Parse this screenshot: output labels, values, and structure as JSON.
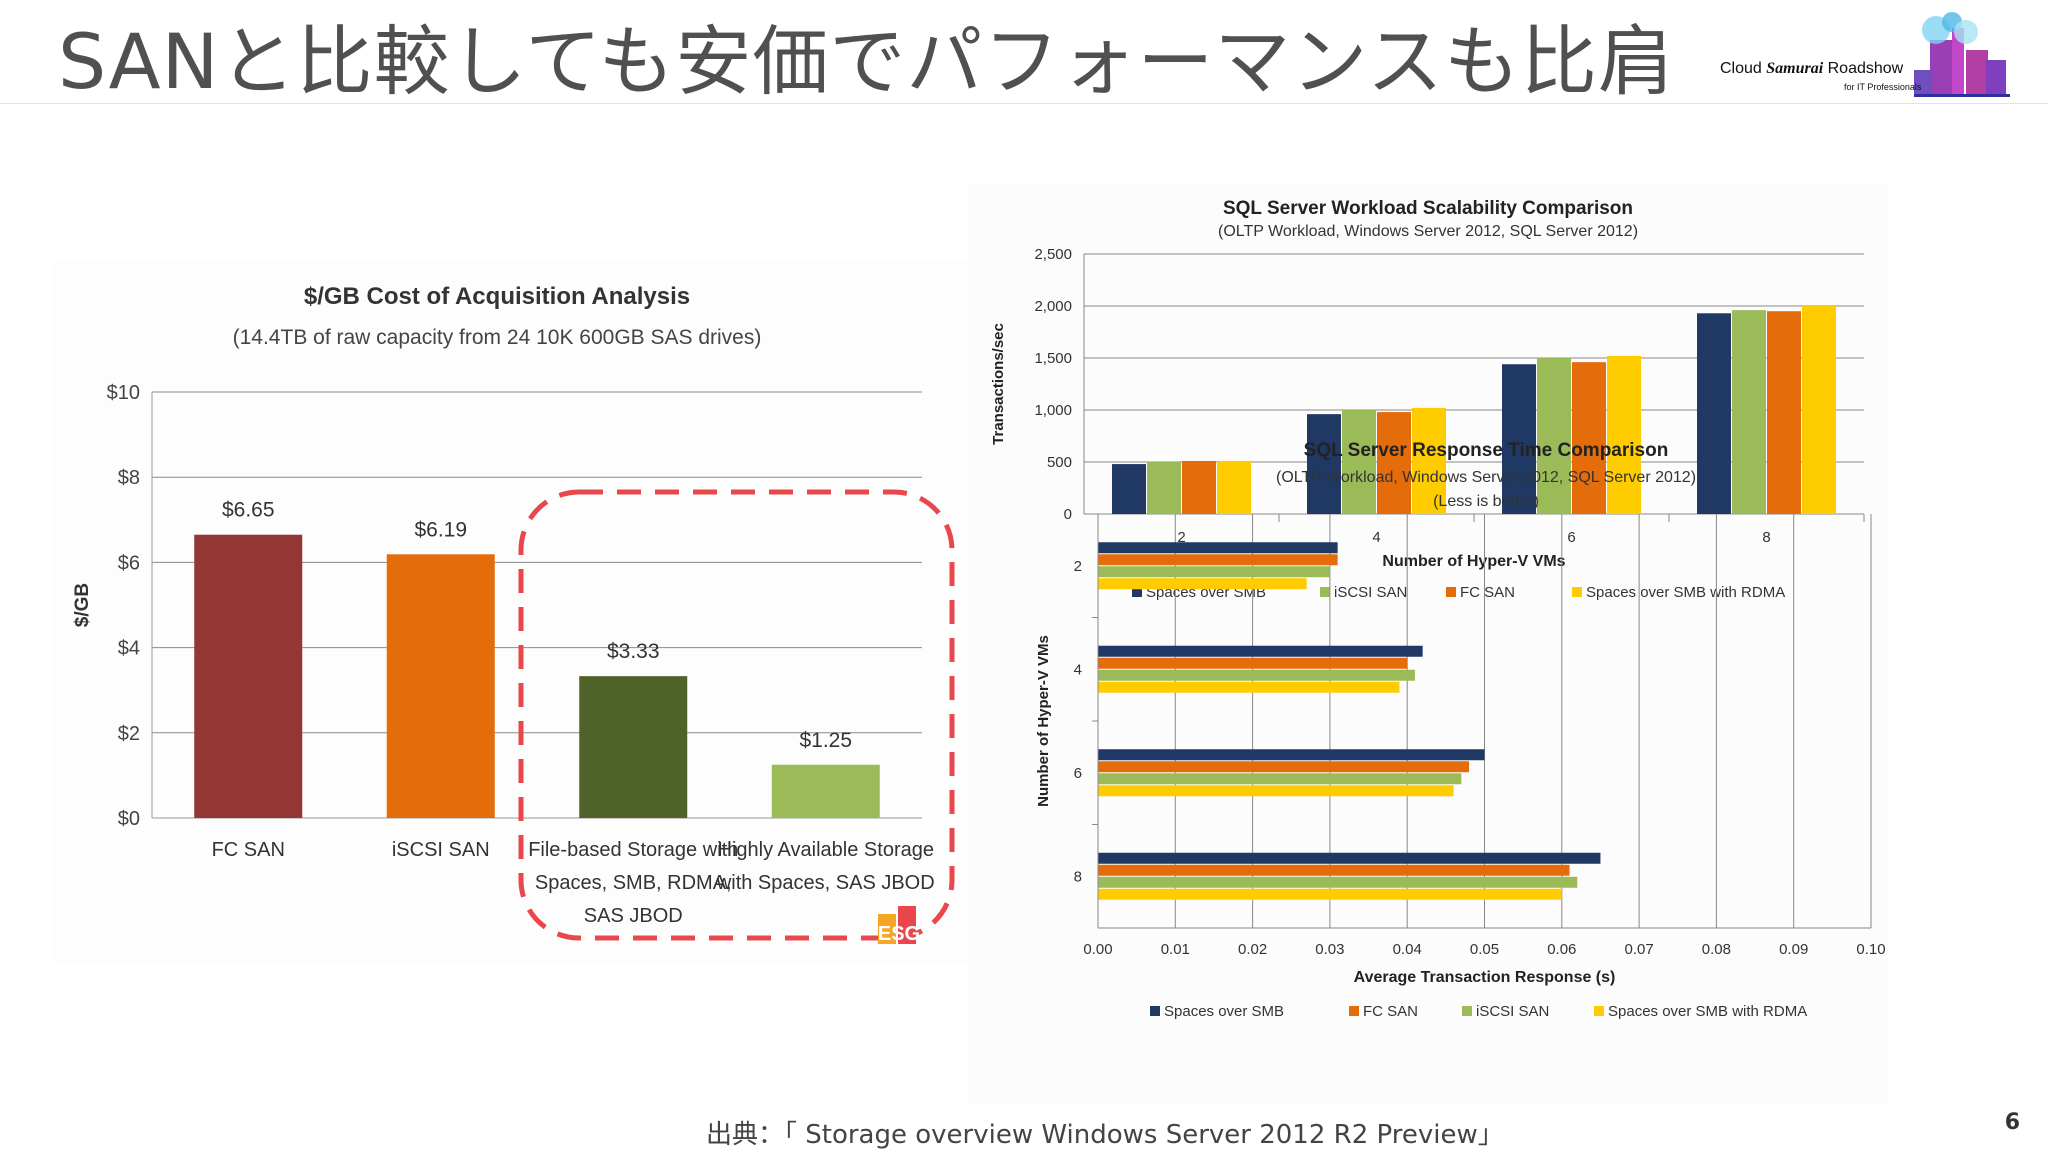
{
  "slide": {
    "title": "SANと比較しても安価でパフォーマンスも比肩",
    "source": "出典：「 Storage overview Windows Server 2012 R2 Preview」",
    "page_number": "6",
    "logo": {
      "text_a": "Cloud ",
      "text_b": "Samurai",
      "text_c": " Roadshow",
      "subtitle": "for IT Professionals"
    }
  },
  "colors": {
    "fc_san": "#943634",
    "iscsi_san_cost": "#e46c0a",
    "file_based": "#4f6228",
    "highly_available": "#9bbb59",
    "spaces_over_smb": "#1f3864",
    "iscsi_san": "#9bbb59",
    "fc_san_perf": "#e46c0a",
    "spaces_rdma": "#ffcc00",
    "highlight": "#e8474b"
  },
  "chart_data": [
    {
      "type": "bar",
      "title": "$/GB Cost of Acquisition Analysis",
      "subtitle": "(14.4TB of raw capacity from 24 10K 600GB SAS drives)",
      "ylabel": "$/GB",
      "xlabel": "",
      "ylim": [
        0,
        10
      ],
      "yticks": [
        "$0",
        "$2",
        "$4",
        "$6",
        "$8",
        "$10"
      ],
      "categories": [
        [
          "FC SAN"
        ],
        [
          "iSCSI SAN"
        ],
        [
          "File-based Storage with",
          "Spaces, SMB, RDMA,",
          "SAS JBOD"
        ],
        [
          "Highly Available Storage",
          "with Spaces, SAS JBOD"
        ]
      ],
      "values": [
        6.65,
        6.19,
        3.33,
        1.25
      ],
      "data_labels": [
        "$6.65",
        "$6.19",
        "$3.33",
        "$1.25"
      ],
      "grid": true,
      "watermark": "ESG"
    },
    {
      "type": "bar",
      "title": "SQL Server Workload Scalability Comparison",
      "subtitle": "(OLTP Workload, Windows Server 2012, SQL Server 2012)",
      "xlabel": "Number of Hyper-V VMs",
      "ylabel": "Transactions/sec",
      "ylim": [
        0,
        2500
      ],
      "yticks": [
        "0",
        "500",
        "1,000",
        "1,500",
        "2,000",
        "2,500"
      ],
      "categories": [
        "2",
        "4",
        "6",
        "8"
      ],
      "series": [
        {
          "name": "Spaces over SMB",
          "values": [
            480,
            960,
            1440,
            1930
          ]
        },
        {
          "name": "iSCSI SAN",
          "values": [
            500,
            1000,
            1500,
            1960
          ]
        },
        {
          "name": "FC SAN",
          "values": [
            510,
            980,
            1460,
            1950
          ]
        },
        {
          "name": "Spaces over SMB with RDMA",
          "values": [
            510,
            1020,
            1520,
            2000
          ]
        }
      ],
      "legend_position": "bottom",
      "grid": true
    },
    {
      "type": "bar",
      "orientation": "horizontal",
      "title": "SQL Server Response Time Comparison",
      "subtitle": "(OLTP Workload, Windows Server 2012, SQL Server 2012)",
      "subtitle2": "(Less is better)",
      "xlabel": "Average Transaction Response (s)",
      "ylabel": "Number of Hyper-V VMs",
      "xlim": [
        0,
        0.1
      ],
      "xticks": [
        "0.00",
        "0.01",
        "0.02",
        "0.03",
        "0.04",
        "0.05",
        "0.06",
        "0.07",
        "0.08",
        "0.09",
        "0.10"
      ],
      "categories": [
        "2",
        "4",
        "6",
        "8"
      ],
      "series": [
        {
          "name": "Spaces over SMB",
          "values": [
            0.031,
            0.042,
            0.05,
            0.065
          ]
        },
        {
          "name": "FC SAN",
          "values": [
            0.031,
            0.04,
            0.048,
            0.061
          ]
        },
        {
          "name": "iSCSI SAN",
          "values": [
            0.03,
            0.041,
            0.047,
            0.062
          ]
        },
        {
          "name": "Spaces over SMB with RDMA",
          "values": [
            0.027,
            0.039,
            0.046,
            0.06
          ]
        }
      ],
      "legend_position": "bottom",
      "grid": true
    }
  ]
}
